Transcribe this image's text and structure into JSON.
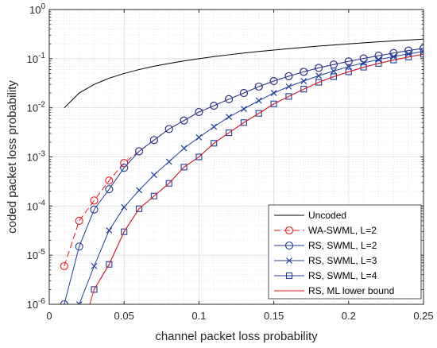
{
  "chart_data": {
    "type": "line",
    "xlabel": "channel packet loss probability",
    "ylabel": "coded packet loss probability",
    "xlim": [
      0,
      0.25
    ],
    "ylim": [
      1e-06,
      1
    ],
    "yscale": "log",
    "grid": true,
    "minor_grid": true,
    "legend_position": "bottom-right",
    "x_ticks": [
      0,
      0.05,
      0.1,
      0.15,
      0.2,
      0.25
    ],
    "x_tick_labels": [
      "0",
      "0.05",
      "0.1",
      "0.15",
      "0.2",
      "0.25"
    ],
    "y_ticks": [
      1e-06,
      1e-05,
      0.0001,
      0.001,
      0.01,
      0.1,
      1
    ],
    "y_tick_labels": [
      {
        "base": "10",
        "exp": "-6"
      },
      {
        "base": "10",
        "exp": "-5"
      },
      {
        "base": "10",
        "exp": "-4"
      },
      {
        "base": "10",
        "exp": "-3"
      },
      {
        "base": "10",
        "exp": "-2"
      },
      {
        "base": "10",
        "exp": "-1"
      },
      {
        "base": "10",
        "exp": "0"
      }
    ],
    "series": [
      {
        "name": "Uncoded",
        "color": "#000000",
        "dash": "solid",
        "marker": "none",
        "x": [
          0.01,
          0.02,
          0.03,
          0.04,
          0.05,
          0.06,
          0.07,
          0.08,
          0.09,
          0.1,
          0.11,
          0.12,
          0.13,
          0.14,
          0.15,
          0.16,
          0.17,
          0.18,
          0.19,
          0.2,
          0.21,
          0.22,
          0.23,
          0.24,
          0.25
        ],
        "y": [
          0.01,
          0.02,
          0.03,
          0.04,
          0.05,
          0.06,
          0.07,
          0.08,
          0.09,
          0.1,
          0.11,
          0.12,
          0.13,
          0.14,
          0.15,
          0.16,
          0.17,
          0.18,
          0.19,
          0.2,
          0.21,
          0.22,
          0.23,
          0.24,
          0.25
        ]
      },
      {
        "name": "WA-SWML, L=2",
        "color": "#e8191c",
        "dash": "dashed",
        "marker": "circle",
        "x": [
          0.01,
          0.02,
          0.03,
          0.04,
          0.05,
          0.06,
          0.07,
          0.08,
          0.09,
          0.1,
          0.11,
          0.12,
          0.13,
          0.14,
          0.15,
          0.16,
          0.17,
          0.18,
          0.19,
          0.2,
          0.21,
          0.22,
          0.23,
          0.24,
          0.25
        ],
        "y": [
          6e-06,
          5e-05,
          0.00013,
          0.00033,
          0.00075,
          0.0013,
          0.0022,
          0.0037,
          0.0055,
          0.0082,
          0.011,
          0.015,
          0.02,
          0.027,
          0.035,
          0.044,
          0.054,
          0.065,
          0.076,
          0.088,
          0.101,
          0.115,
          0.13,
          0.146,
          0.162
        ]
      },
      {
        "name": "RS, SWML, L=2",
        "color": "#1f3c99",
        "dash": "solid",
        "marker": "circle",
        "x": [
          0.01,
          0.02,
          0.03,
          0.04,
          0.05,
          0.06,
          0.07,
          0.08,
          0.09,
          0.1,
          0.11,
          0.12,
          0.13,
          0.14,
          0.15,
          0.16,
          0.17,
          0.18,
          0.19,
          0.2,
          0.21,
          0.22,
          0.23,
          0.24,
          0.25
        ],
        "y": [
          1e-06,
          1.5e-05,
          8.5e-05,
          0.00022,
          0.0006,
          0.0013,
          0.0022,
          0.0037,
          0.0055,
          0.0082,
          0.011,
          0.015,
          0.02,
          0.027,
          0.035,
          0.044,
          0.054,
          0.065,
          0.076,
          0.088,
          0.101,
          0.115,
          0.13,
          0.146,
          0.162
        ]
      },
      {
        "name": "RS, SWML, L=3",
        "color": "#1f3c99",
        "dash": "solid",
        "marker": "x",
        "x": [
          0.02,
          0.03,
          0.04,
          0.05,
          0.06,
          0.07,
          0.08,
          0.09,
          0.1,
          0.11,
          0.12,
          0.13,
          0.14,
          0.15,
          0.16,
          0.17,
          0.18,
          0.19,
          0.2,
          0.21,
          0.22,
          0.23,
          0.24,
          0.25
        ],
        "y": [
          1e-06,
          6e-06,
          3.2e-05,
          9.5e-05,
          0.00021,
          0.00043,
          0.0008,
          0.0015,
          0.0025,
          0.0041,
          0.0065,
          0.0095,
          0.014,
          0.02,
          0.027,
          0.035,
          0.045,
          0.056,
          0.069,
          0.082,
          0.096,
          0.11,
          0.125,
          0.14
        ]
      },
      {
        "name": "RS, SWML, L=4",
        "color": "#1f3c99",
        "dash": "solid",
        "marker": "square",
        "x": [
          0.03,
          0.04,
          0.05,
          0.06,
          0.07,
          0.08,
          0.09,
          0.1,
          0.11,
          0.12,
          0.13,
          0.14,
          0.15,
          0.16,
          0.17,
          0.18,
          0.19,
          0.2,
          0.21,
          0.22,
          0.23,
          0.24,
          0.25
        ],
        "y": [
          2e-06,
          6.5e-06,
          3e-05,
          8.8e-05,
          0.00016,
          0.00029,
          0.00062,
          0.001,
          0.0019,
          0.0031,
          0.005,
          0.0077,
          0.012,
          0.017,
          0.024,
          0.033,
          0.043,
          0.054,
          0.067,
          0.08,
          0.094,
          0.108,
          0.123
        ]
      },
      {
        "name": "RS, ML lower bound",
        "color": "#e8191c",
        "dash": "solid",
        "marker": "none",
        "x": [
          0.027,
          0.03,
          0.04,
          0.05,
          0.06,
          0.07,
          0.08,
          0.09,
          0.1,
          0.11,
          0.12,
          0.13,
          0.14,
          0.15,
          0.16,
          0.17,
          0.18,
          0.19,
          0.2,
          0.21,
          0.22,
          0.23,
          0.24,
          0.25
        ],
        "y": [
          1e-06,
          2e-06,
          6.5e-06,
          3e-05,
          8.8e-05,
          0.00016,
          0.00029,
          0.00062,
          0.001,
          0.0019,
          0.0031,
          0.005,
          0.0077,
          0.012,
          0.017,
          0.024,
          0.033,
          0.043,
          0.054,
          0.067,
          0.08,
          0.094,
          0.108,
          0.123
        ]
      }
    ]
  }
}
